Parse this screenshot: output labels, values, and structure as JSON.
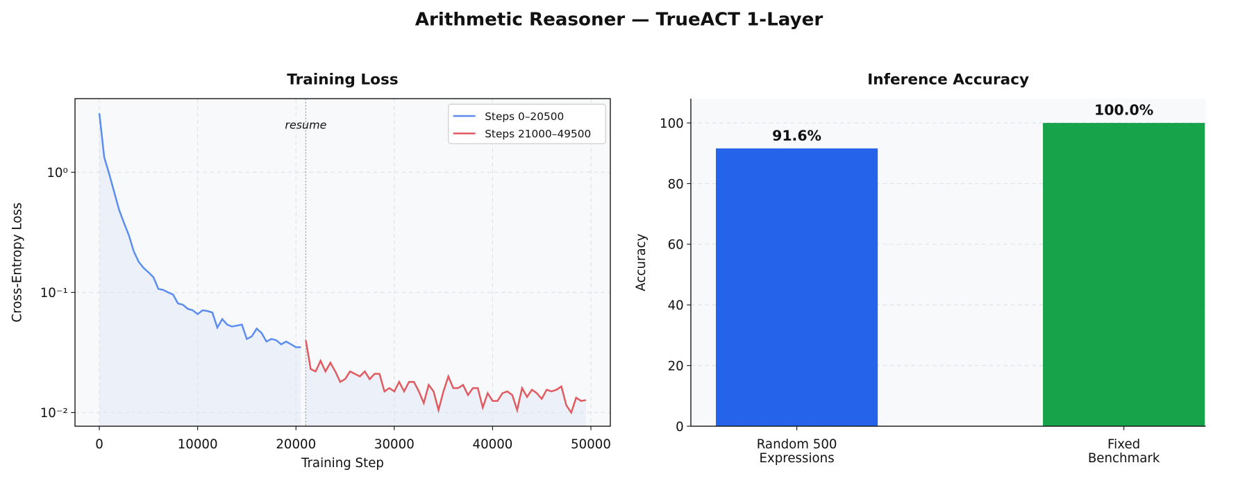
{
  "title": "Arithmetic Reasoner — TrueACT 1-Layer",
  "chart_data": [
    {
      "type": "line",
      "title": "Training Loss",
      "xlabel": "Training Step",
      "ylabel": "Cross-Entropy Loss",
      "log_y": true,
      "grid": true,
      "legend": "upper right",
      "fill": true,
      "vline": {
        "x": 21000,
        "label": "resume"
      },
      "xlim": [
        -2475,
        51975
      ],
      "ylim": [
        0.0077,
        4.1
      ],
      "xticks": [
        0,
        10000,
        20000,
        30000,
        40000,
        50000
      ],
      "yticks": [
        {
          "value": 1,
          "label": "10⁰"
        },
        {
          "value": 0.1,
          "label": "10⁻¹"
        },
        {
          "value": 0.01,
          "label": "10⁻²"
        }
      ],
      "series": [
        {
          "name": "Steps 0–20500",
          "color": "#5b8def",
          "x": [
            0,
            500,
            1000,
            1500,
            2000,
            2500,
            3000,
            3500,
            4000,
            4500,
            5000,
            5500,
            6000,
            6500,
            7000,
            7500,
            8000,
            8500,
            9000,
            9500,
            10000,
            10500,
            11000,
            11500,
            12000,
            12500,
            13000,
            13500,
            14000,
            14500,
            15000,
            15500,
            16000,
            16500,
            17000,
            17500,
            18000,
            18500,
            19000,
            19500,
            20000,
            20500
          ],
          "values": [
            3.1,
            1.33,
            0.97,
            0.69,
            0.49,
            0.38,
            0.3,
            0.22,
            0.18,
            0.16,
            0.147,
            0.134,
            0.107,
            0.105,
            0.1,
            0.096,
            0.081,
            0.079,
            0.073,
            0.071,
            0.066,
            0.071,
            0.07,
            0.068,
            0.051,
            0.06,
            0.054,
            0.052,
            0.053,
            0.054,
            0.041,
            0.043,
            0.05,
            0.046,
            0.039,
            0.041,
            0.04,
            0.037,
            0.039,
            0.037,
            0.035,
            0.035
          ]
        },
        {
          "name": "Steps 21000–49500",
          "color": "#e05a5f",
          "x": [
            21000,
            21500,
            22000,
            22500,
            23000,
            23500,
            24000,
            24500,
            25000,
            25500,
            26000,
            26500,
            27000,
            27500,
            28000,
            28500,
            29000,
            29500,
            30000,
            30500,
            31000,
            31500,
            32000,
            32500,
            33000,
            33500,
            34000,
            34500,
            35000,
            35500,
            36000,
            36500,
            37000,
            37500,
            38000,
            38500,
            39000,
            39500,
            40000,
            40500,
            41000,
            41500,
            42000,
            42500,
            43000,
            43500,
            44000,
            44500,
            45000,
            45500,
            46000,
            46500,
            47000,
            47500,
            48000,
            48500,
            49000,
            49500
          ],
          "values": [
            0.04,
            0.023,
            0.022,
            0.027,
            0.022,
            0.026,
            0.022,
            0.018,
            0.019,
            0.022,
            0.021,
            0.02,
            0.022,
            0.019,
            0.021,
            0.021,
            0.015,
            0.016,
            0.015,
            0.018,
            0.015,
            0.018,
            0.018,
            0.015,
            0.012,
            0.017,
            0.015,
            0.0105,
            0.015,
            0.02,
            0.016,
            0.016,
            0.017,
            0.014,
            0.016,
            0.016,
            0.011,
            0.0145,
            0.0125,
            0.0125,
            0.0145,
            0.015,
            0.014,
            0.0105,
            0.016,
            0.0135,
            0.0155,
            0.0145,
            0.013,
            0.0155,
            0.015,
            0.0155,
            0.0165,
            0.0115,
            0.01,
            0.0133,
            0.0125,
            0.0127
          ]
        }
      ]
    },
    {
      "type": "bar",
      "title": "Inference Accuracy",
      "ylabel": "Accuracy",
      "grid": true,
      "categories": [
        "Random 500\nExpressions",
        "Fixed\nBenchmark"
      ],
      "values": [
        91.6,
        100.0
      ],
      "value_labels": [
        "91.6%",
        "100.0%"
      ],
      "colors": [
        "#2563eb",
        "#16a34a"
      ],
      "ylim": [
        0,
        108
      ],
      "yticks": [
        0,
        20,
        40,
        60,
        80,
        100
      ]
    }
  ]
}
